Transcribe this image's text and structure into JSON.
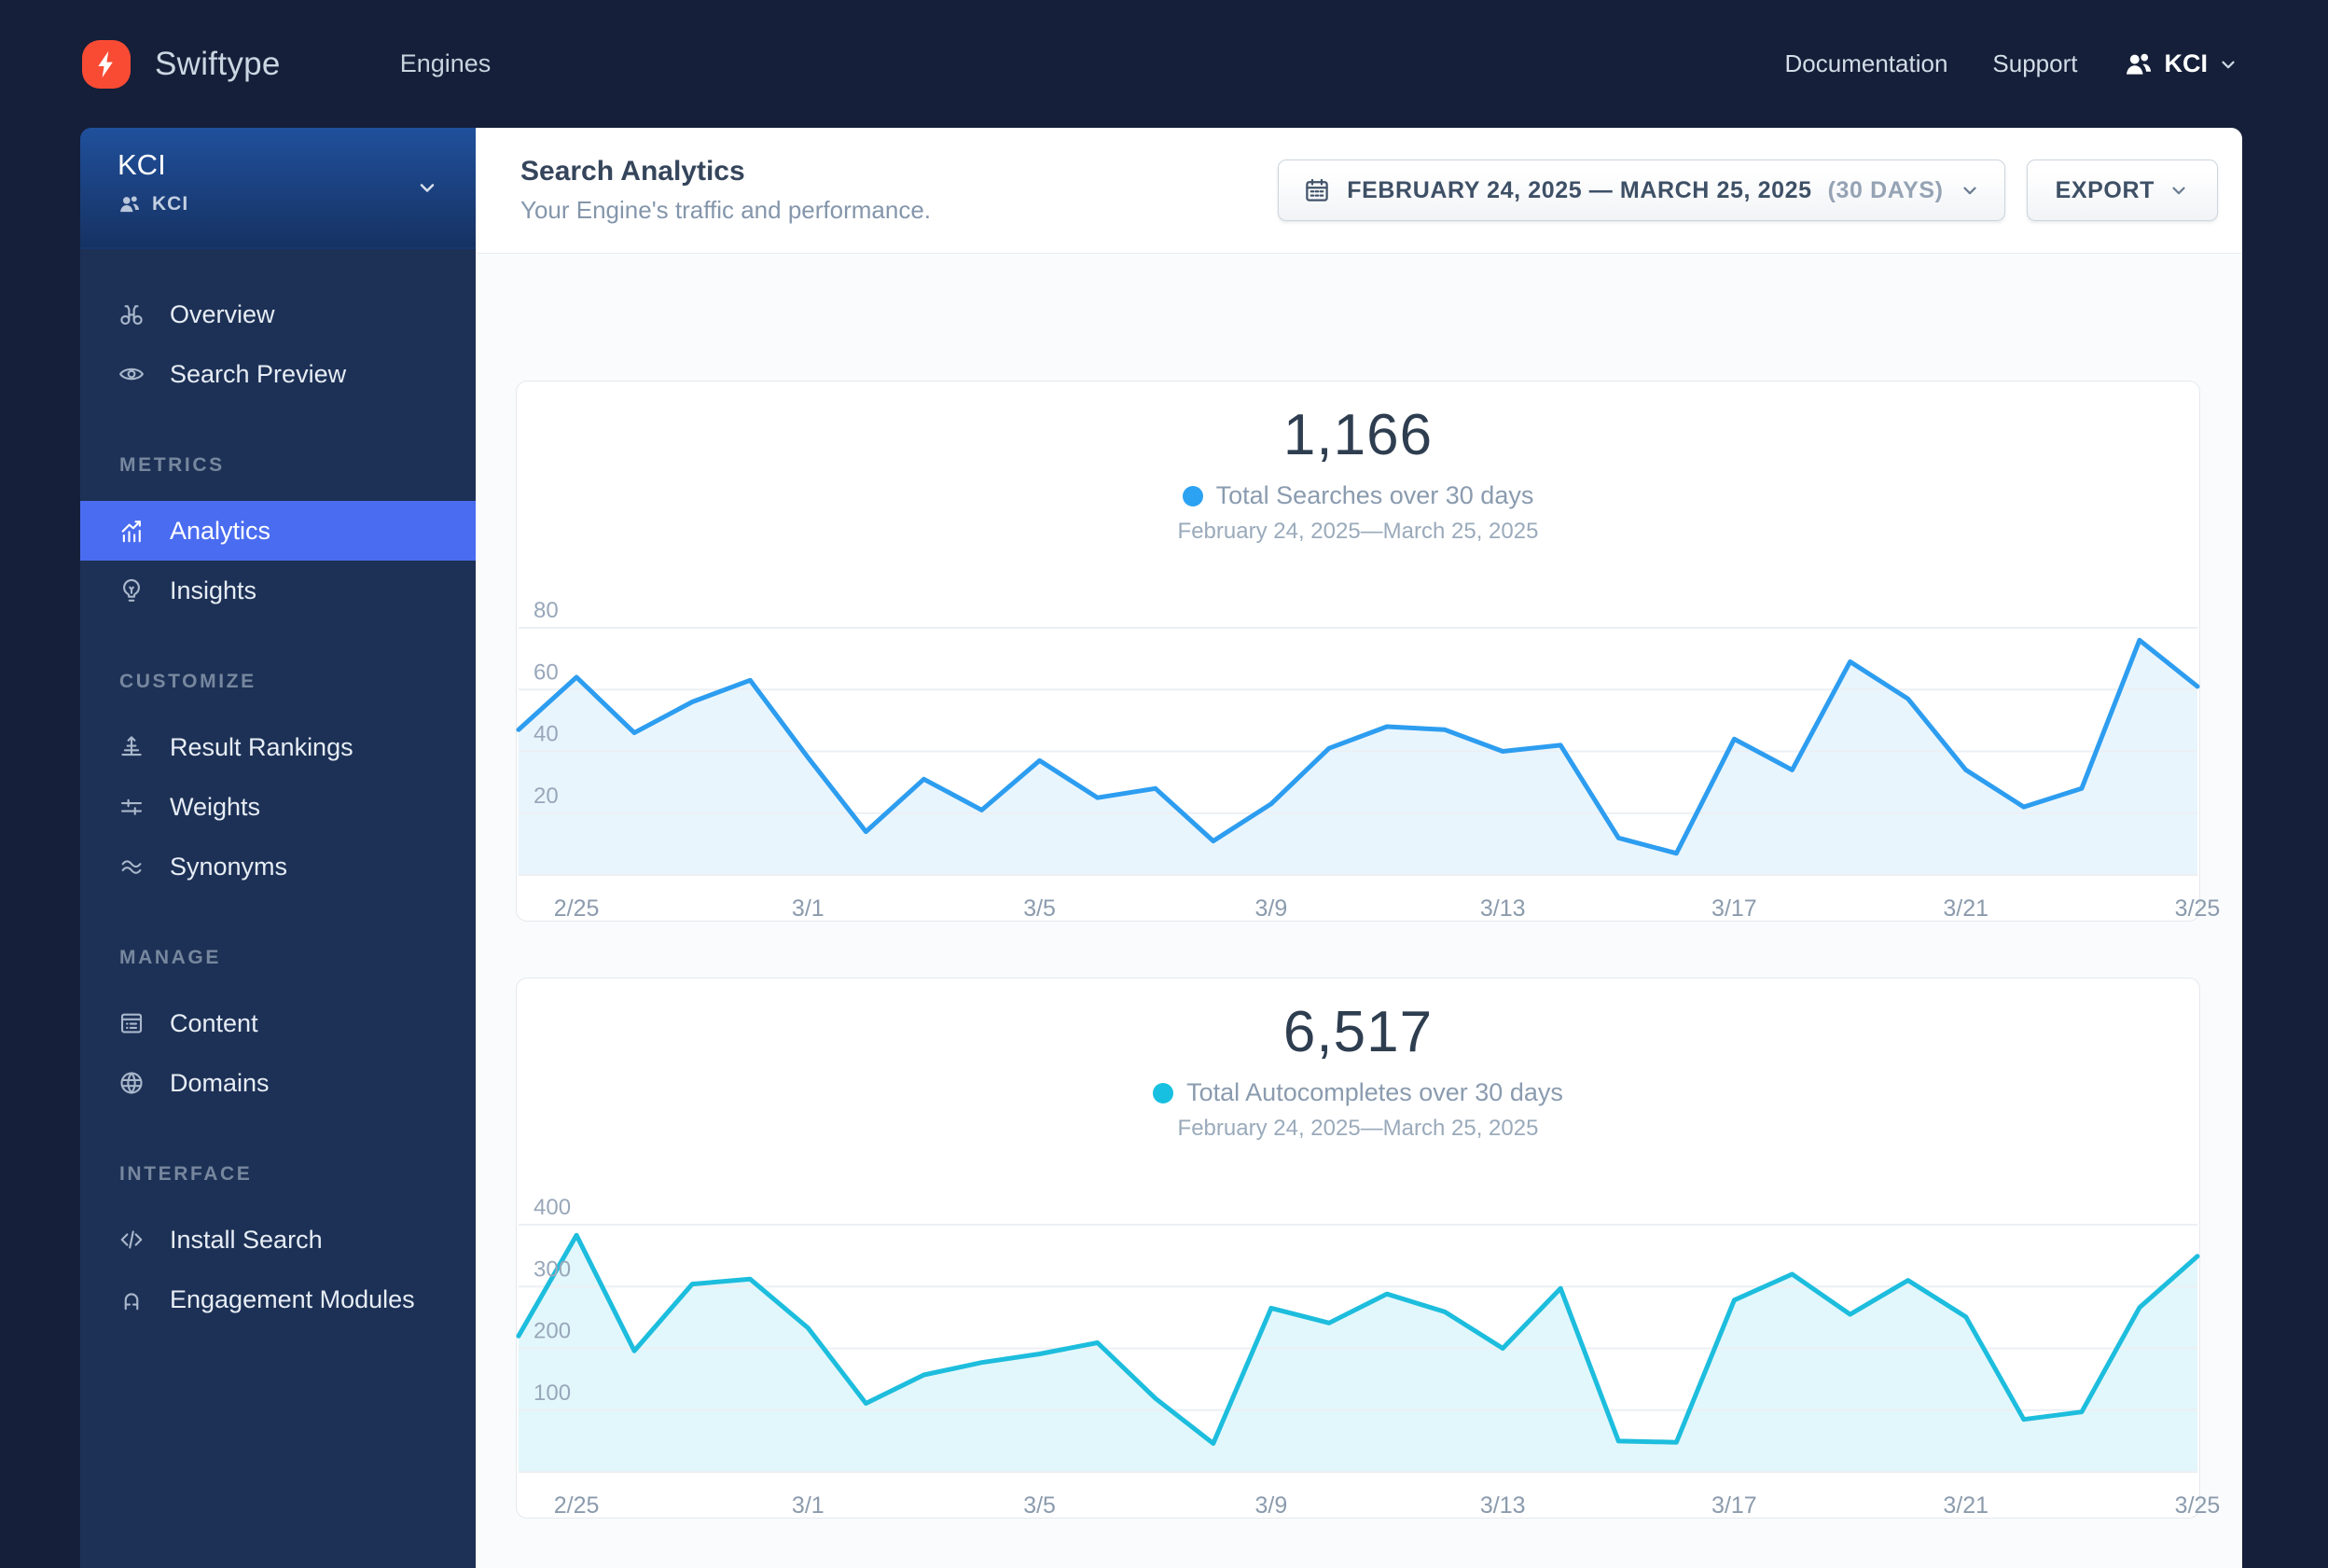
{
  "colors": {
    "brand": "#f94b34",
    "accent": "#4a6cf0",
    "sidebar_bg": "#1d3156",
    "topnav_bg": "#151f39"
  },
  "nav": {
    "brand": "Swiftype",
    "engines_label": "Engines",
    "documentation_label": "Documentation",
    "support_label": "Support",
    "account_label": "KCI"
  },
  "sidebar": {
    "engine_name": "KCI",
    "engine_sub": "KCI",
    "sections": [
      {
        "label": "",
        "items": [
          {
            "label": "Overview"
          },
          {
            "label": "Search Preview"
          }
        ]
      },
      {
        "label": "METRICS",
        "items": [
          {
            "label": "Analytics"
          },
          {
            "label": "Insights"
          }
        ]
      },
      {
        "label": "CUSTOMIZE",
        "items": [
          {
            "label": "Result Rankings"
          },
          {
            "label": "Weights"
          },
          {
            "label": "Synonyms"
          }
        ]
      },
      {
        "label": "MANAGE",
        "items": [
          {
            "label": "Content"
          },
          {
            "label": "Domains"
          }
        ]
      },
      {
        "label": "INTERFACE",
        "items": [
          {
            "label": "Install Search"
          },
          {
            "label": "Engagement Modules"
          }
        ]
      }
    ]
  },
  "header": {
    "title": "Search Analytics",
    "subtitle": "Your Engine's traffic and performance.",
    "date_range": "FEBRUARY 24, 2025 — MARCH 25, 2025",
    "date_range_suffix": "(30 DAYS)",
    "export_label": "EXPORT"
  },
  "chart_data": [
    {
      "type": "area",
      "title": "Total Searches over 30 days",
      "total_value": 1166,
      "total_display": "1,166",
      "legend": "Total Searches over 30 days",
      "caption": "February 24, 2025—March 25, 2025",
      "line_color": "#2d9df0",
      "fill_color": "#e9f5fd",
      "dot_color": "#2ba2f2",
      "grid_max": 80,
      "yticks": [
        20,
        40,
        60,
        80
      ],
      "ylim": [
        0,
        80
      ],
      "grid": true,
      "legend_position": "top",
      "x": [
        "2/24",
        "2/25",
        "2/26",
        "2/27",
        "2/28",
        "3/1",
        "3/2",
        "3/3",
        "3/4",
        "3/5",
        "3/6",
        "3/7",
        "3/8",
        "3/9",
        "3/10",
        "3/11",
        "3/12",
        "3/13",
        "3/14",
        "3/15",
        "3/16",
        "3/17",
        "3/18",
        "3/19",
        "3/20",
        "3/21",
        "3/22",
        "3/23",
        "3/24",
        "3/25"
      ],
      "tick_indices": [
        1,
        5,
        9,
        13,
        17,
        21,
        25,
        29
      ],
      "values": [
        47,
        64,
        46,
        56,
        63,
        38,
        14,
        31,
        21,
        37,
        25,
        28,
        11,
        23,
        41,
        48,
        47,
        40,
        42,
        12,
        7,
        44,
        34,
        69,
        57,
        34,
        22,
        28,
        76,
        61
      ]
    },
    {
      "type": "area",
      "title": "Total Autocompletes over 30 days",
      "total_value": 6517,
      "total_display": "6,517",
      "legend": "Total Autocompletes over 30 days",
      "caption": "February 24, 2025—March 25, 2025",
      "line_color": "#1dbddd",
      "fill_color": "#e2f7fb",
      "dot_color": "#17c0e0",
      "grid_max": 400,
      "yticks": [
        100,
        200,
        300,
        400
      ],
      "ylim": [
        0,
        400
      ],
      "grid": true,
      "legend_position": "top",
      "x": [
        "2/24",
        "2/25",
        "2/26",
        "2/27",
        "2/28",
        "3/1",
        "3/2",
        "3/3",
        "3/4",
        "3/5",
        "3/6",
        "3/7",
        "3/8",
        "3/9",
        "3/10",
        "3/11",
        "3/12",
        "3/13",
        "3/14",
        "3/15",
        "3/16",
        "3/17",
        "3/18",
        "3/19",
        "3/20",
        "3/21",
        "3/22",
        "3/23",
        "3/24",
        "3/25"
      ],
      "tick_indices": [
        1,
        5,
        9,
        13,
        17,
        21,
        25,
        29
      ],
      "values": [
        220,
        383,
        196,
        304,
        312,
        233,
        111,
        157,
        177,
        191,
        209,
        119,
        46,
        265,
        241,
        288,
        259,
        200,
        297,
        50,
        48,
        278,
        320,
        255,
        310,
        251,
        85,
        97,
        266,
        349
      ]
    }
  ]
}
